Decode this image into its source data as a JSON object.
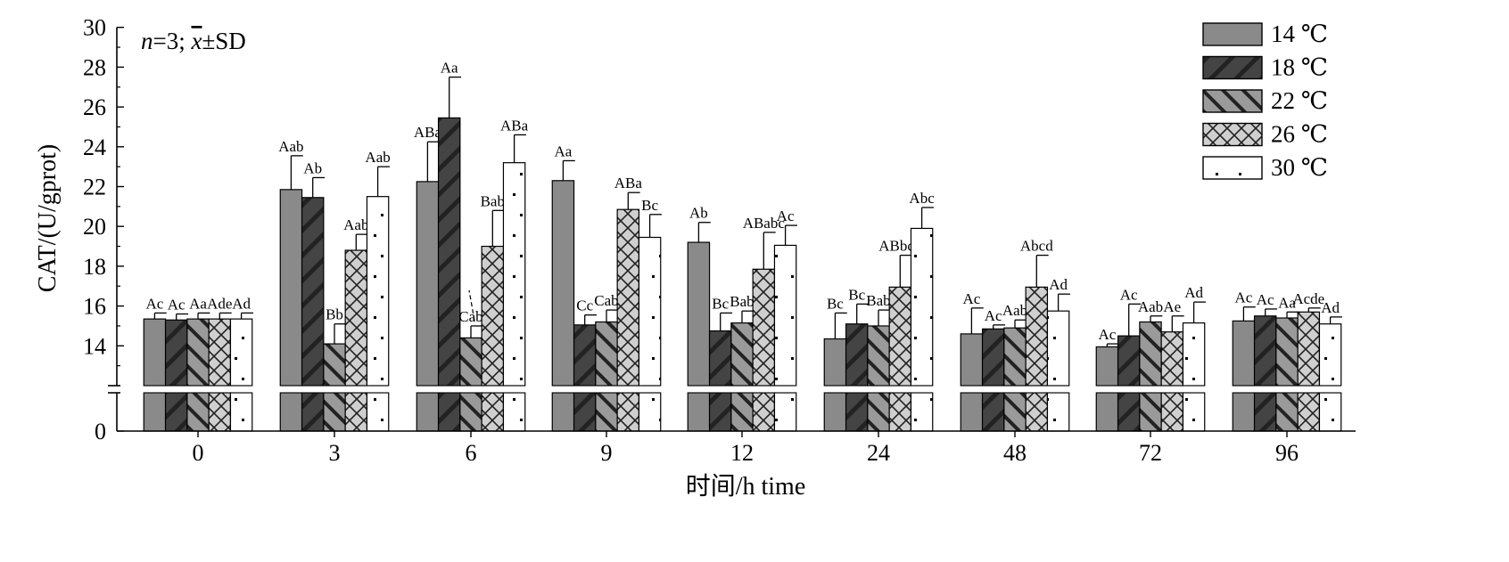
{
  "chart_data": {
    "type": "bar",
    "xlabel": "时间/h time",
    "ylabel": "CAT/(U/gprot)",
    "annotation": {
      "n": "n",
      "rest": "=3; ",
      "xbar": "x",
      "sd": "±SD"
    },
    "categories": [
      "0",
      "3",
      "6",
      "9",
      "12",
      "24",
      "48",
      "72",
      "96"
    ],
    "ylim": [
      0,
      30
    ],
    "axis_break": [
      12,
      13.2
    ],
    "yticks": [
      "0",
      "14",
      "16",
      "18",
      "20",
      "22",
      "24",
      "26",
      "28",
      "30"
    ],
    "legend_position": "top-right",
    "series": [
      {
        "name": "14 ℃",
        "values": [
          15.35,
          21.85,
          22.25,
          22.3,
          19.2,
          14.35,
          14.6,
          13.95,
          15.25
        ],
        "errors": [
          0.3,
          1.7,
          2.0,
          1.0,
          1.0,
          1.3,
          1.3,
          0.15,
          0.7
        ],
        "labels": [
          "Ac",
          "Aab",
          "ABa",
          "Aa",
          "Ab",
          "Bc",
          "Ac",
          "Ac",
          "Ac"
        ]
      },
      {
        "name": "18 ℃",
        "values": [
          15.3,
          21.45,
          25.45,
          15.05,
          14.75,
          15.1,
          14.85,
          14.5,
          15.5
        ],
        "errors": [
          0.3,
          1.0,
          2.05,
          0.5,
          0.9,
          1.0,
          0.2,
          1.6,
          0.35
        ],
        "labels": [
          "Ac",
          "Ab",
          "Aa",
          "Cc",
          "Bc",
          "Bc",
          "Ac",
          "Ac",
          "Ac"
        ]
      },
      {
        "name": "22 ℃",
        "values": [
          15.35,
          14.1,
          14.4,
          15.2,
          15.15,
          15.0,
          14.9,
          15.2,
          15.4
        ],
        "errors": [
          0.3,
          1.0,
          0.6,
          0.6,
          0.6,
          0.8,
          0.4,
          0.3,
          0.3
        ],
        "labels": [
          "Aa",
          "Bb",
          "Cab",
          "Cab",
          "Bab",
          "Bab",
          "Aab",
          "Aab",
          "Aa"
        ]
      },
      {
        "name": "26 ℃",
        "values": [
          15.35,
          18.8,
          19.0,
          20.85,
          17.85,
          16.95,
          16.95,
          14.7,
          15.7
        ],
        "errors": [
          0.3,
          0.8,
          1.8,
          0.85,
          1.85,
          1.6,
          1.6,
          0.8,
          0.2
        ],
        "labels": [
          "Ade",
          "Aab",
          "Bab",
          "ABa",
          "ABabc",
          "ABbcd",
          "Abcd",
          "Ae",
          "Acde"
        ]
      },
      {
        "name": "30 ℃",
        "values": [
          15.35,
          21.5,
          23.2,
          19.45,
          19.05,
          19.9,
          15.75,
          15.15,
          15.1
        ],
        "errors": [
          0.3,
          1.5,
          1.4,
          1.15,
          1.0,
          1.05,
          0.85,
          1.05,
          0.35
        ],
        "labels": [
          "Ad",
          "Aab",
          "ABa",
          "Bc",
          "Ac",
          "Abc",
          "Ad",
          "Ad",
          "Ad"
        ]
      }
    ]
  }
}
